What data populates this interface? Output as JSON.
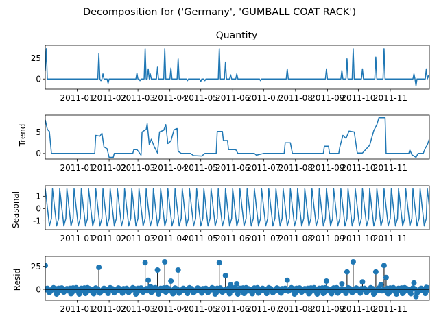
{
  "chart_data": {
    "type": "line",
    "title": "Decomposition for ('Germany', 'GUMBALL COAT RACK')",
    "x_range": [
      "2010-12-01",
      "2011-12-09"
    ],
    "x_ticks": [
      "2011-01",
      "2011-02",
      "2011-03",
      "2011-04",
      "2011-05",
      "2011-06",
      "2011-07",
      "2011-08",
      "2011-09",
      "2011-10",
      "2011-11"
    ],
    "tick_dates": [
      "2011-01-01",
      "2011-02-01",
      "2011-03-01",
      "2011-04-01",
      "2011-05-01",
      "2011-06-01",
      "2011-07-01",
      "2011-08-01",
      "2011-09-01",
      "2011-10-01",
      "2011-11-01"
    ],
    "seasonal_period_days": 7,
    "panels": [
      {
        "id": "quantity",
        "title": "Quantity",
        "ylabel": "",
        "type": "line",
        "color": "#1f77b4",
        "ylim": [
          -12,
          40
        ],
        "yticks": [
          0,
          25
        ],
        "baseline": 0,
        "spikes": [
          {
            "date": "2010-12-01",
            "value": 10
          },
          {
            "date": "2010-12-02",
            "value": 36
          },
          {
            "date": "2011-01-22",
            "value": 30
          },
          {
            "date": "2011-01-24",
            "value": -2
          },
          {
            "date": "2011-01-26",
            "value": 6
          },
          {
            "date": "2011-01-31",
            "value": -5
          },
          {
            "date": "2011-02-28",
            "value": 7
          },
          {
            "date": "2011-03-03",
            "value": -2
          },
          {
            "date": "2011-03-08",
            "value": 36
          },
          {
            "date": "2011-03-11",
            "value": 12
          },
          {
            "date": "2011-03-13",
            "value": 6
          },
          {
            "date": "2011-03-20",
            "value": 14
          },
          {
            "date": "2011-03-27",
            "value": 36
          },
          {
            "date": "2011-04-02",
            "value": 13
          },
          {
            "date": "2011-04-09",
            "value": 24
          },
          {
            "date": "2011-04-18",
            "value": -2
          },
          {
            "date": "2011-05-01",
            "value": -3
          },
          {
            "date": "2011-05-05",
            "value": -2
          },
          {
            "date": "2011-05-19",
            "value": 36
          },
          {
            "date": "2011-05-25",
            "value": 20
          },
          {
            "date": "2011-05-30",
            "value": 5
          },
          {
            "date": "2011-06-05",
            "value": 6
          },
          {
            "date": "2011-06-28",
            "value": -2
          },
          {
            "date": "2011-07-24",
            "value": 12
          },
          {
            "date": "2011-08-31",
            "value": 12
          },
          {
            "date": "2011-09-15",
            "value": 10
          },
          {
            "date": "2011-09-20",
            "value": 24
          },
          {
            "date": "2011-09-26",
            "value": 36
          },
          {
            "date": "2011-10-05",
            "value": 12
          },
          {
            "date": "2011-10-18",
            "value": 26
          },
          {
            "date": "2011-10-26",
            "value": 36
          },
          {
            "date": "2011-11-24",
            "value": 6
          },
          {
            "date": "2011-11-26",
            "value": -8
          },
          {
            "date": "2011-12-06",
            "value": 12
          },
          {
            "date": "2011-12-08",
            "value": 4
          }
        ]
      },
      {
        "id": "trend",
        "title": "",
        "ylabel": "Trend",
        "type": "line",
        "color": "#1f77b4",
        "ylim": [
          -1.3,
          8.9
        ],
        "yticks": [
          0,
          5
        ],
        "points": [
          {
            "date": "2010-12-01",
            "value": 7.8
          },
          {
            "date": "2010-12-03",
            "value": 5.6
          },
          {
            "date": "2010-12-05",
            "value": 5.1
          },
          {
            "date": "2010-12-07",
            "value": 0
          },
          {
            "date": "2011-01-18",
            "value": 0
          },
          {
            "date": "2011-01-19",
            "value": 4.2
          },
          {
            "date": "2011-01-23",
            "value": 4.0
          },
          {
            "date": "2011-01-25",
            "value": 4.7
          },
          {
            "date": "2011-01-27",
            "value": 1.5
          },
          {
            "date": "2011-01-30",
            "value": 1.1
          },
          {
            "date": "2011-02-01",
            "value": -0.9
          },
          {
            "date": "2011-02-05",
            "value": -0.9
          },
          {
            "date": "2011-02-06",
            "value": 0
          },
          {
            "date": "2011-02-24",
            "value": 0
          },
          {
            "date": "2011-02-25",
            "value": 0.9
          },
          {
            "date": "2011-02-28",
            "value": 0.9
          },
          {
            "date": "2011-03-02",
            "value": 0.3
          },
          {
            "date": "2011-03-04",
            "value": -0.4
          },
          {
            "date": "2011-03-05",
            "value": 5.0
          },
          {
            "date": "2011-03-09",
            "value": 5.6
          },
          {
            "date": "2011-03-10",
            "value": 6.9
          },
          {
            "date": "2011-03-12",
            "value": 2.1
          },
          {
            "date": "2011-03-14",
            "value": 3.3
          },
          {
            "date": "2011-03-17",
            "value": 1.5
          },
          {
            "date": "2011-03-20",
            "value": 0.1
          },
          {
            "date": "2011-03-22",
            "value": 5.0
          },
          {
            "date": "2011-03-26",
            "value": 5.4
          },
          {
            "date": "2011-03-28",
            "value": 6.7
          },
          {
            "date": "2011-03-30",
            "value": 2.3
          },
          {
            "date": "2011-04-02",
            "value": 2.9
          },
          {
            "date": "2011-04-05",
            "value": 5.5
          },
          {
            "date": "2011-04-08",
            "value": 5.8
          },
          {
            "date": "2011-04-09",
            "value": 0.5
          },
          {
            "date": "2011-04-12",
            "value": 0
          },
          {
            "date": "2011-04-21",
            "value": 0
          },
          {
            "date": "2011-04-24",
            "value": -0.5
          },
          {
            "date": "2011-05-02",
            "value": -0.6
          },
          {
            "date": "2011-05-05",
            "value": 0
          },
          {
            "date": "2011-05-16",
            "value": 0
          },
          {
            "date": "2011-05-17",
            "value": 5.1
          },
          {
            "date": "2011-05-22",
            "value": 5.1
          },
          {
            "date": "2011-05-23",
            "value": 3.0
          },
          {
            "date": "2011-05-27",
            "value": 3.0
          },
          {
            "date": "2011-05-28",
            "value": 0.9
          },
          {
            "date": "2011-06-04",
            "value": 0.9
          },
          {
            "date": "2011-06-06",
            "value": 0
          },
          {
            "date": "2011-06-22",
            "value": 0
          },
          {
            "date": "2011-06-24",
            "value": -0.4
          },
          {
            "date": "2011-07-01",
            "value": 0
          },
          {
            "date": "2011-07-21",
            "value": 0
          },
          {
            "date": "2011-07-22",
            "value": 2.5
          },
          {
            "date": "2011-07-27",
            "value": 2.5
          },
          {
            "date": "2011-07-29",
            "value": 0
          },
          {
            "date": "2011-08-28",
            "value": 0
          },
          {
            "date": "2011-08-29",
            "value": 1.7
          },
          {
            "date": "2011-09-02",
            "value": 1.7
          },
          {
            "date": "2011-09-03",
            "value": 0
          },
          {
            "date": "2011-09-12",
            "value": 0
          },
          {
            "date": "2011-09-13",
            "value": 1.5
          },
          {
            "date": "2011-09-16",
            "value": 4.2
          },
          {
            "date": "2011-09-19",
            "value": 3.5
          },
          {
            "date": "2011-09-22",
            "value": 5.2
          },
          {
            "date": "2011-09-27",
            "value": 5.0
          },
          {
            "date": "2011-09-30",
            "value": 0.1
          },
          {
            "date": "2011-10-05",
            "value": 0.1
          },
          {
            "date": "2011-10-12",
            "value": 1.9
          },
          {
            "date": "2011-10-16",
            "value": 5.3
          },
          {
            "date": "2011-10-19",
            "value": 6.7
          },
          {
            "date": "2011-10-21",
            "value": 8.3
          },
          {
            "date": "2011-10-27",
            "value": 8.3
          },
          {
            "date": "2011-10-28",
            "value": 0
          },
          {
            "date": "2011-11-19",
            "value": 0
          },
          {
            "date": "2011-11-20",
            "value": 0.8
          },
          {
            "date": "2011-11-22",
            "value": -0.3
          },
          {
            "date": "2011-11-26",
            "value": -0.9
          },
          {
            "date": "2011-11-28",
            "value": 0
          },
          {
            "date": "2011-12-03",
            "value": 0
          },
          {
            "date": "2011-12-05",
            "value": 1.2
          },
          {
            "date": "2011-12-07",
            "value": 2.0
          },
          {
            "date": "2011-12-09",
            "value": 3.4
          }
        ]
      },
      {
        "id": "seasonal",
        "title": "",
        "ylabel": "Seasonal",
        "type": "line",
        "color": "#1f77b4",
        "ylim": [
          -1.7,
          1.85
        ],
        "yticks": [
          -1,
          0,
          1
        ],
        "cycle": [
          1.6,
          0.9,
          0.1,
          -0.6,
          -1.4,
          -1.1,
          -0.8
        ]
      },
      {
        "id": "resid",
        "title": "",
        "ylabel": "Resid",
        "type": "scatter",
        "color": "#1f77b4",
        "ylim": [
          -12,
          36
        ],
        "yticks": [
          0,
          25
        ],
        "baseline": 0,
        "outliers": [
          {
            "date": "2010-12-01",
            "value": 26
          },
          {
            "date": "2011-01-22",
            "value": 24
          },
          {
            "date": "2011-03-08",
            "value": 29
          },
          {
            "date": "2011-03-11",
            "value": 10
          },
          {
            "date": "2011-03-13",
            "value": 3
          },
          {
            "date": "2011-03-20",
            "value": 21
          },
          {
            "date": "2011-03-27",
            "value": 30
          },
          {
            "date": "2011-04-02",
            "value": 9
          },
          {
            "date": "2011-04-09",
            "value": 21
          },
          {
            "date": "2011-05-19",
            "value": 29
          },
          {
            "date": "2011-05-25",
            "value": 15
          },
          {
            "date": "2011-05-30",
            "value": 5
          },
          {
            "date": "2011-06-05",
            "value": 6
          },
          {
            "date": "2011-07-24",
            "value": 10
          },
          {
            "date": "2011-08-31",
            "value": 9
          },
          {
            "date": "2011-09-15",
            "value": 6
          },
          {
            "date": "2011-09-20",
            "value": 19
          },
          {
            "date": "2011-09-26",
            "value": 30
          },
          {
            "date": "2011-10-05",
            "value": 8
          },
          {
            "date": "2011-10-18",
            "value": 19
          },
          {
            "date": "2011-10-23",
            "value": 5
          },
          {
            "date": "2011-10-26",
            "value": 26
          },
          {
            "date": "2011-10-28",
            "value": 13
          },
          {
            "date": "2011-11-24",
            "value": 7
          },
          {
            "date": "2011-11-26",
            "value": -8
          },
          {
            "date": "2011-12-06",
            "value": 2
          }
        ]
      }
    ]
  }
}
